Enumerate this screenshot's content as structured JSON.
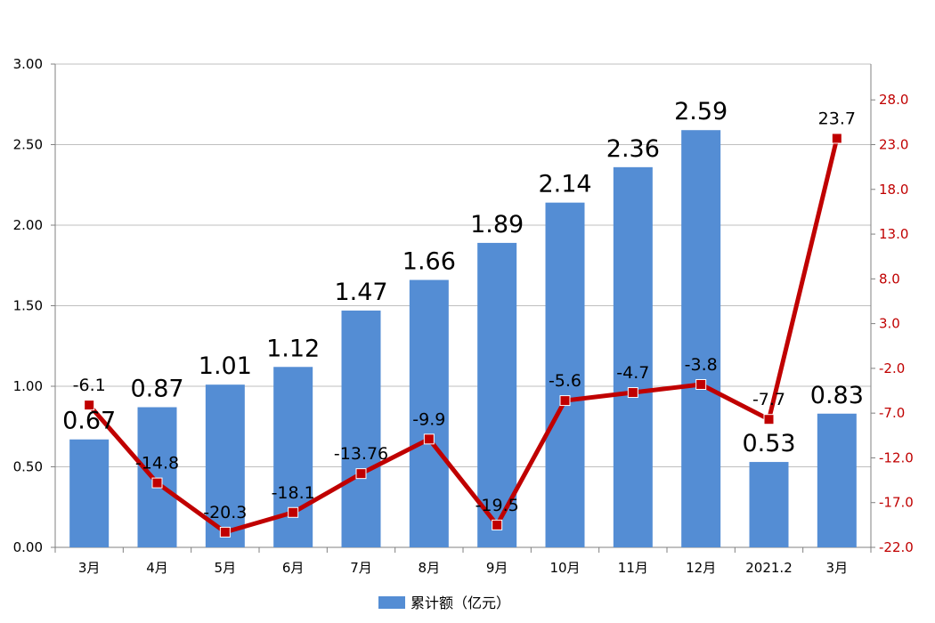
{
  "chart_data": {
    "type": "bar",
    "categories": [
      "3月",
      "4月",
      "5月",
      "6月",
      "7月",
      "8月",
      "9月",
      "10月",
      "11月",
      "12月",
      "2021.2",
      "3月"
    ],
    "series": [
      {
        "name": "累计额（亿元）",
        "type": "bar",
        "axis": "left",
        "color": "#548dd4",
        "values": [
          0.67,
          0.87,
          1.01,
          1.12,
          1.47,
          1.66,
          1.89,
          2.14,
          2.36,
          2.59,
          0.53,
          0.83
        ],
        "labels": [
          "0.67",
          "0.87",
          "1.01",
          "1.12",
          "1.47",
          "1.66",
          "1.89",
          "2.14",
          "2.36",
          "2.59",
          "0.53",
          "0.83"
        ]
      },
      {
        "type": "line",
        "axis": "right",
        "color": "#c00000",
        "marker_color": "#c00000",
        "values": [
          -6.1,
          -14.8,
          -20.3,
          -18.1,
          -13.76,
          -9.9,
          -19.5,
          -5.6,
          -4.7,
          -3.8,
          -7.7,
          23.7
        ],
        "labels": [
          "-6.1",
          "-14.8",
          "-20.3",
          "-18.1",
          "-13.76",
          "-9.9",
          "-19.5",
          "-5.6",
          "-4.7",
          "-3.8",
          "-7.7",
          "23.7"
        ]
      }
    ],
    "left_axis": {
      "min": 0,
      "max": 3,
      "ticks": [
        "0.00",
        "0.50",
        "1.00",
        "1.50",
        "2.00",
        "2.50",
        "3.00"
      ]
    },
    "right_axis": {
      "min": -22,
      "max": 32,
      "ticks": [
        "-22.0",
        "-17.0",
        "-12.0",
        "-7.0",
        "-2.0",
        "3.0",
        "8.0",
        "13.0",
        "18.0",
        "23.0",
        "28.0"
      ],
      "color": "#c00000"
    },
    "grid": true,
    "legend_position": "bottom-center"
  }
}
